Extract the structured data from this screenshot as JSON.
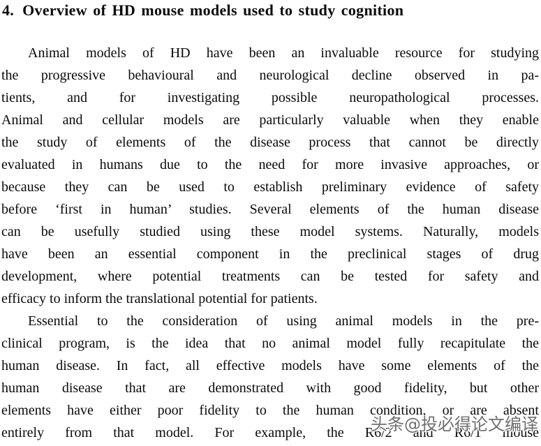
{
  "page": {
    "background": "#ffffff",
    "text_color": "#0a0a0a"
  },
  "heading": {
    "number": "4.",
    "title": "Overview of HD mouse models used to study cognition"
  },
  "body": {
    "paragraphs": [
      {
        "justify_last_line": false,
        "lines": [
          "Animal models of HD have been an invaluable resource for studying",
          "the progressive behavioural and neurological decline observed in pa-",
          "tients, and for investigating possible neuropathological processes.",
          "Animal and cellular models are particularly valuable when they enable",
          "the study of elements of the disease process that cannot be directly",
          "evaluated in humans due to the need for more invasive approaches, or",
          "because they can be used to establish preliminary evidence of safety",
          "before ‘first in human’ studies. Several elements of the human disease",
          "can be usefully studied using these model systems. Naturally, models",
          "have been an essential component in the preclinical stages of drug",
          "development, where potential treatments can be tested for safety and",
          "efficacy to inform the translational potential for patients."
        ]
      },
      {
        "justify_last_line": true,
        "lines": [
          "Essential to the consideration of using animal models in the pre-",
          "clinical program, is the idea that no animal model fully recapitulate the",
          "human disease. In fact, all effective models have some elements of the",
          "human disease that are demonstrated with good fidelity, but other",
          "elements have either poor fidelity to the human condition, or are absent",
          "entirely from that model. For example, the R6/2 and R6/1 mouse"
        ]
      }
    ]
  },
  "watermark": {
    "text": "头条@投必得论文编译",
    "color": "#707070",
    "outline_color": "#ffffff"
  }
}
